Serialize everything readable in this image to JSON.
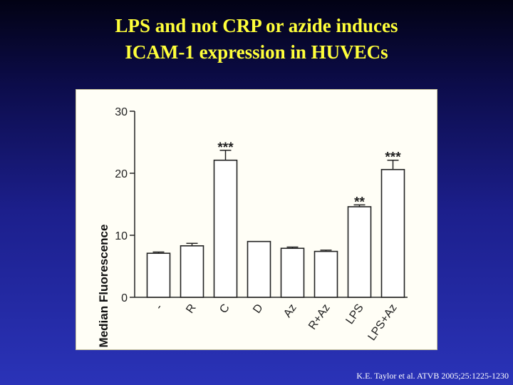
{
  "slide": {
    "title_line1": "LPS and not CRP or azide induces",
    "title_line2": "ICAM-1 expression in HUVECs",
    "citation": "K.E. Taylor et al. ATVB 2005;25:1225-1230"
  },
  "chart_data": {
    "type": "bar",
    "title": "",
    "xlabel": "",
    "ylabel": "Median Fluorescence",
    "ylim": [
      0,
      30
    ],
    "yticks": [
      0,
      10,
      20,
      30
    ],
    "categories": [
      "-",
      "R",
      "C",
      "D",
      "Az",
      "R+Az",
      "LPS",
      "LPS+Az"
    ],
    "values": [
      7.1,
      8.3,
      22.1,
      9.0,
      7.9,
      7.4,
      14.6,
      20.6
    ],
    "errors": [
      0.2,
      0.4,
      1.6,
      0.0,
      0.2,
      0.2,
      0.3,
      1.5
    ],
    "annotations": [
      "",
      "",
      "***",
      "",
      "",
      "",
      "**",
      "***"
    ],
    "grid": false,
    "bar_color": "#ffffff"
  }
}
